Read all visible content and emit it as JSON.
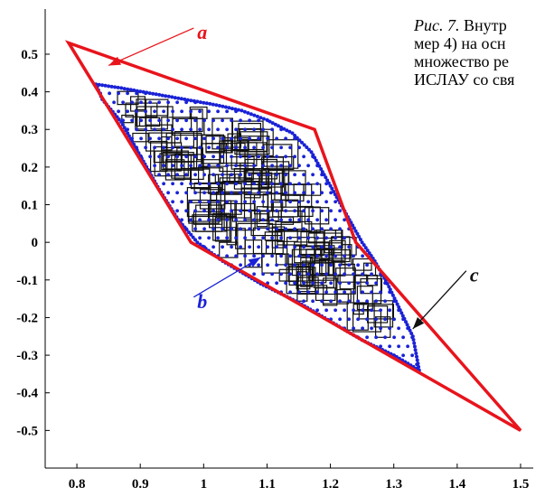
{
  "caption": {
    "lines": [
      "Рис. 7. Внутр",
      "мер 4) на осн",
      "множество ре",
      "ИСЛАУ со свя"
    ]
  },
  "chart_data": {
    "type": "scatter",
    "title": "",
    "xlabel": "",
    "ylabel": "",
    "xlim": [
      0.75,
      1.52
    ],
    "ylim": [
      -0.6,
      0.62
    ],
    "x_ticks": [
      "0.8",
      "0.9",
      "1",
      "1.1",
      "1.2",
      "1.3",
      "1.4",
      "1.5"
    ],
    "y_ticks": [
      "0.5",
      "0.4",
      "0.3",
      "0.2",
      "0.1",
      "0",
      "-0.1",
      "-0.2",
      "-0.3",
      "-0.4",
      "-0.5"
    ],
    "grid": false,
    "outer_polygon": {
      "color": "#e8141c",
      "points": [
        [
          0.787,
          0.53
        ],
        [
          1.175,
          0.3
        ],
        [
          1.24,
          0.0
        ],
        [
          1.5,
          -0.5
        ],
        [
          0.98,
          0.0
        ]
      ]
    },
    "solution_set": {
      "color": "#1a22d6",
      "points": [
        [
          0.83,
          0.42
        ],
        [
          0.87,
          0.41
        ],
        [
          0.92,
          0.395
        ],
        [
          0.97,
          0.38
        ],
        [
          1.02,
          0.365
        ],
        [
          1.06,
          0.35
        ],
        [
          1.1,
          0.325
        ],
        [
          1.14,
          0.29
        ],
        [
          1.17,
          0.24
        ],
        [
          1.19,
          0.18
        ],
        [
          1.21,
          0.12
        ],
        [
          1.23,
          0.06
        ],
        [
          1.25,
          0.0
        ],
        [
          1.27,
          -0.05
        ],
        [
          1.29,
          -0.11
        ],
        [
          1.31,
          -0.18
        ],
        [
          1.33,
          -0.25
        ],
        [
          1.34,
          -0.34
        ],
        [
          1.3,
          -0.3
        ],
        [
          1.25,
          -0.26
        ],
        [
          1.2,
          -0.21
        ],
        [
          1.15,
          -0.16
        ],
        [
          1.09,
          -0.11
        ],
        [
          1.03,
          -0.05
        ],
        [
          0.99,
          0.0
        ],
        [
          0.96,
          0.06
        ],
        [
          0.93,
          0.14
        ],
        [
          0.9,
          0.23
        ],
        [
          0.87,
          0.32
        ],
        [
          0.84,
          0.38
        ]
      ]
    },
    "boxes": {
      "color": "#111111",
      "count": 180
    },
    "annotations": [
      {
        "label": "a",
        "color": "#e8141c",
        "text_at": [
          0.99,
          0.555
        ],
        "arrow_to": [
          0.85,
          0.47
        ]
      },
      {
        "label": "b",
        "color": "#1a22d6",
        "text_at": [
          0.99,
          -0.16
        ],
        "arrow_to": [
          1.09,
          -0.04
        ]
      },
      {
        "label": "c",
        "color": "#111111",
        "text_at": [
          1.42,
          -0.09
        ],
        "arrow_to": [
          1.33,
          -0.23
        ]
      }
    ]
  }
}
